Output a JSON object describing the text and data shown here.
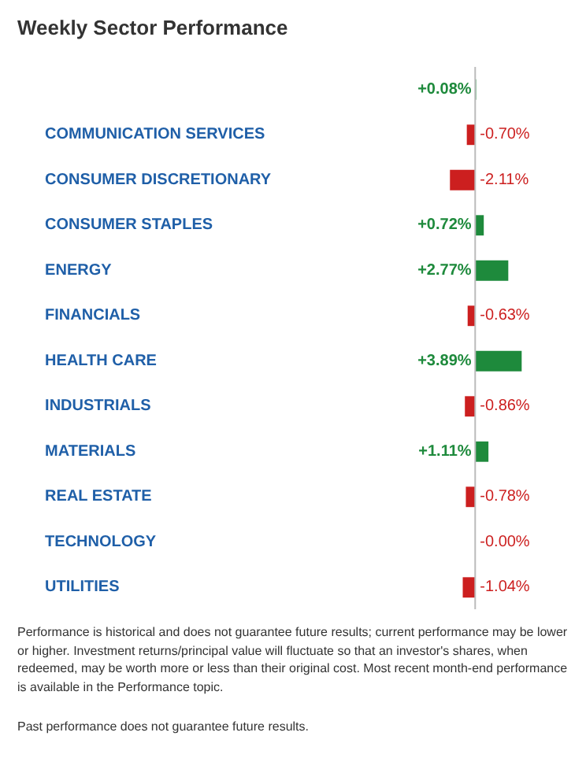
{
  "chart_data": {
    "type": "bar",
    "orientation": "horizontal",
    "title": "Weekly Sector Performance",
    "categories": [
      null,
      "COMMUNICATION SERVICES",
      "CONSUMER DISCRETIONARY",
      "CONSUMER STAPLES",
      "ENERGY",
      "FINANCIALS",
      "HEALTH CARE",
      "INDUSTRIALS",
      "MATERIALS",
      "REAL ESTATE",
      "TECHNOLOGY",
      "UTILITIES"
    ],
    "values": [
      0.08,
      -0.7,
      -2.11,
      0.72,
      2.77,
      -0.63,
      3.89,
      -0.86,
      1.11,
      -0.78,
      -0.0,
      -1.04
    ],
    "colors": [
      "#1e8a3c",
      "#cc1f1f",
      "#cc1f1f",
      "#1e8a3c",
      "#1e8a3c",
      "#cc1f1f",
      "#1e8a3c",
      "#cc1f1f",
      "#1e8a3c",
      "#cc1f1f",
      "#cc1f1f",
      "#cc1f1f"
    ],
    "value_labels": [
      "+0.08%",
      "-0.70%",
      "-2.11%",
      "+0.72%",
      "+2.77%",
      "-0.63%",
      "+3.89%",
      "-0.86%",
      "+1.11%",
      "-0.78%",
      "-0.00%",
      "-1.04%"
    ],
    "annotations": [
      "Performance is historical and does not guarantee future results; current performance may be lower or higher. Investment returns/principal value will fluctuate so that an investor's shares, when redeemed, may be worth more or less than their original cost. Most recent month-end performance is available in the Performance topic.",
      "Past performance does not guarantee future results."
    ]
  }
}
